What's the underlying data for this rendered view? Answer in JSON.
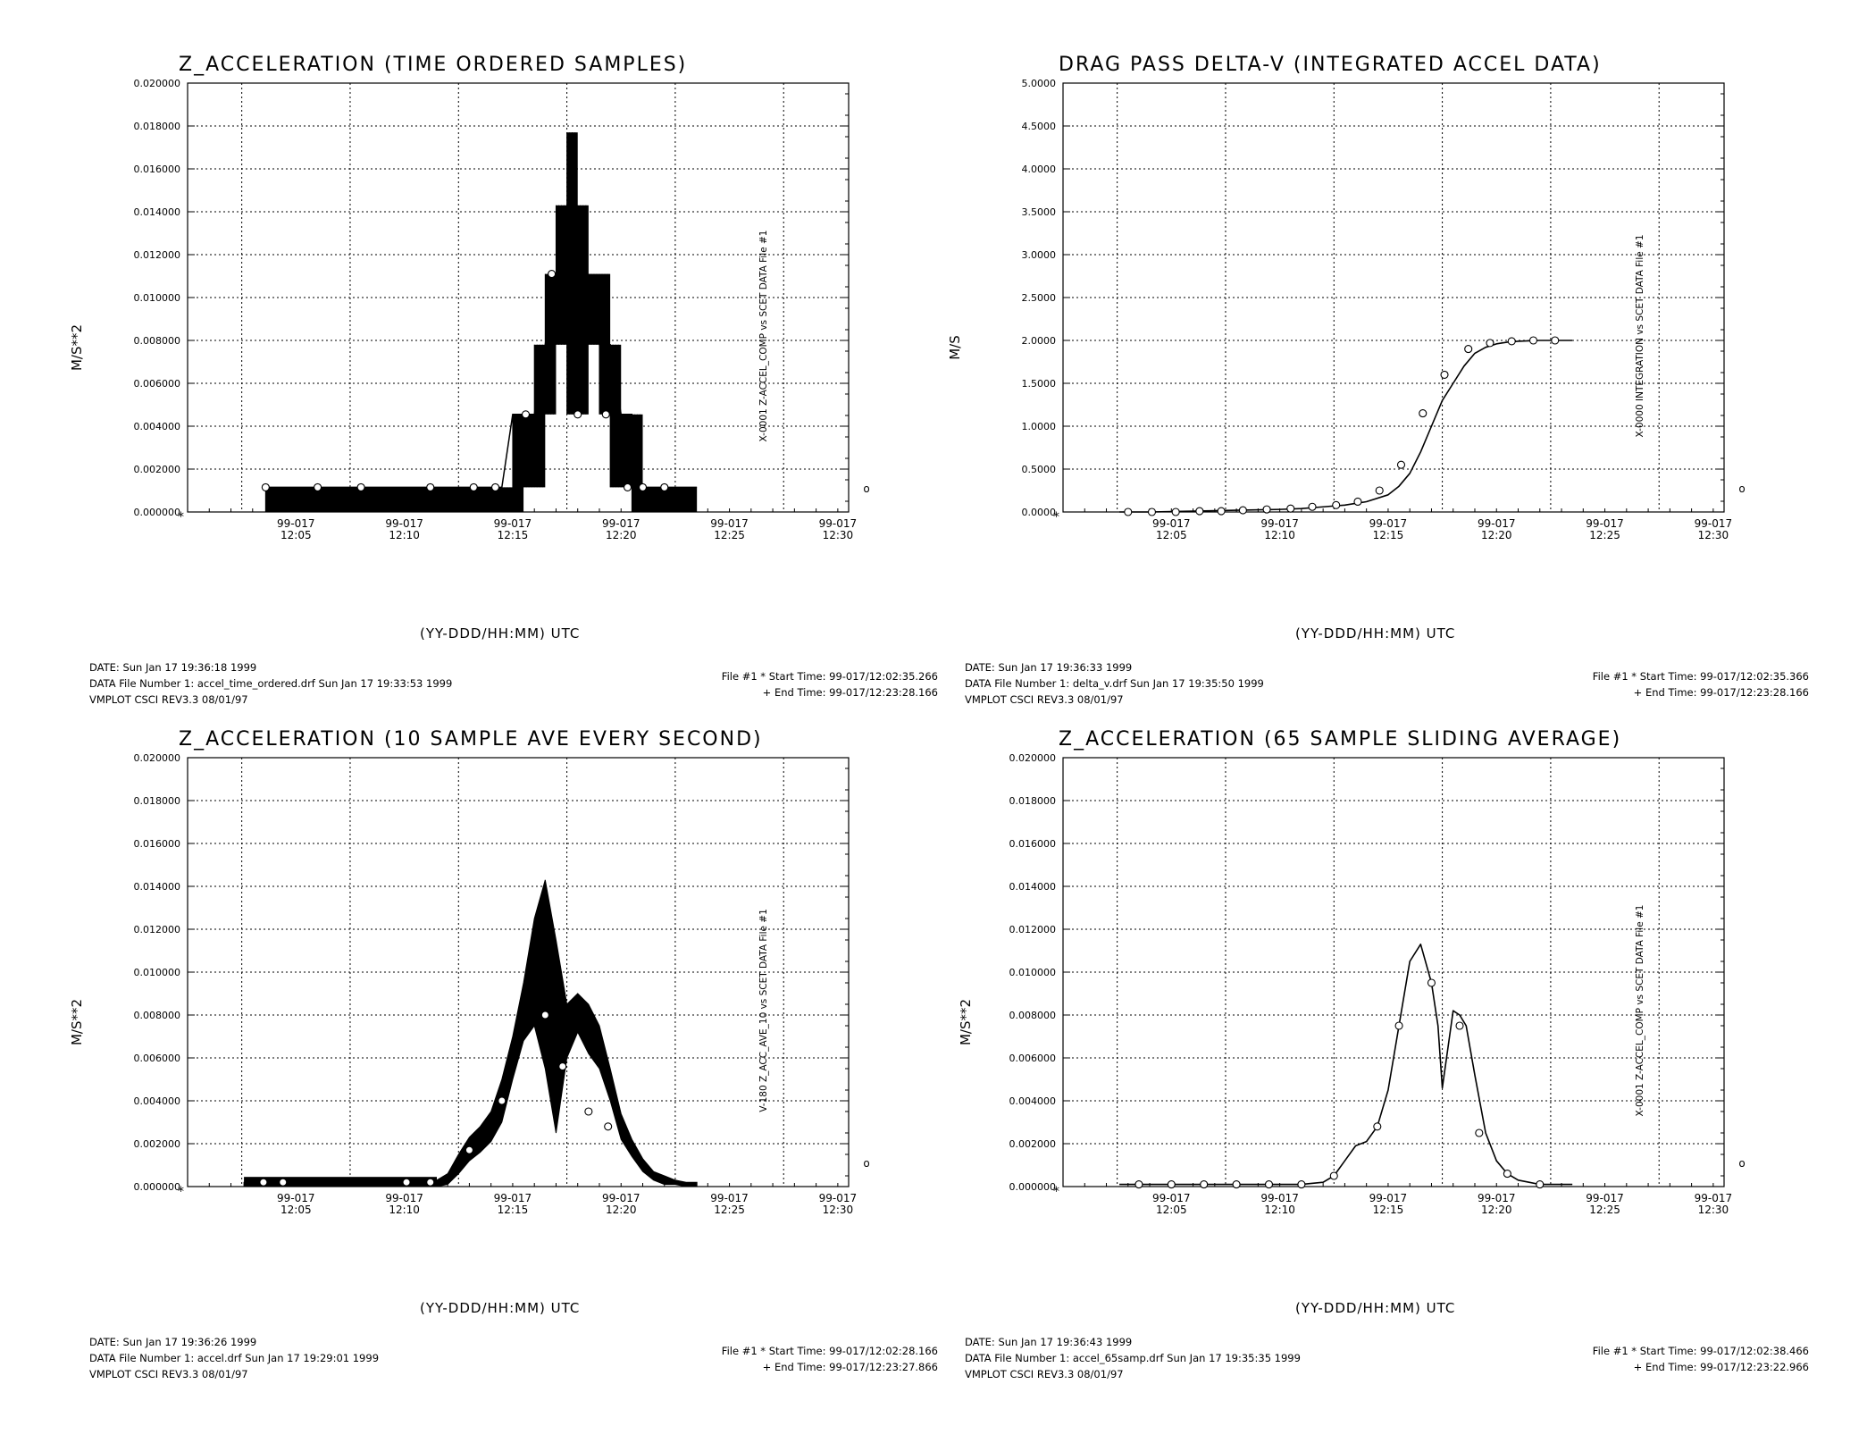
{
  "x_tick_labels": [
    "99-017\n12:05",
    "99-017\n12:10",
    "99-017\n12:15",
    "99-017\n12:20",
    "99-017\n12:25",
    "99-017\n12:30"
  ],
  "chart_data": [
    {
      "type": "line",
      "title": "Z_ACCELERATION (TIME ORDERED SAMPLES)",
      "xlabel": "(YY-DDD/HH:MM) UTC",
      "ylabel": "M/S**2",
      "right_label": "X-0001 Z-ACCEL_COMP vs SCET  DATA File #1",
      "right_marker": "o",
      "y_ticks": [
        "0.000000",
        "0.002000",
        "0.004000",
        "0.006000",
        "0.008000",
        "0.010000",
        "0.012000",
        "0.014000",
        "0.016000",
        "0.018000",
        "0.020000"
      ],
      "ylim": [
        0,
        0.02
      ],
      "xlim_minutes": [
        0,
        30.5
      ],
      "grid": true,
      "style": "quantized",
      "series": [
        {
          "x_minutes": [
            3.6,
            6.0,
            8.0,
            10.0,
            12.0,
            13.0,
            14.0,
            14.5,
            15.0,
            15.5,
            16.0,
            16.5,
            17.0,
            17.5,
            18.0,
            18.5,
            19.0,
            19.5,
            20.0,
            20.5,
            21.0,
            21.5,
            22.0,
            22.5,
            23.0,
            23.5
          ],
          "values": [
            0.00115,
            0.00115,
            0.00115,
            0.00115,
            0.00115,
            0.00115,
            0.00115,
            0.00115,
            0.00455,
            0.00455,
            0.00455,
            0.0078,
            0.0111,
            0.0143,
            0.0078,
            0.0111,
            0.0078,
            0.0078,
            0.00455,
            0.00455,
            0.00115,
            0.00115,
            0.00115,
            0.00115,
            0.00115,
            0.00115
          ],
          "upper": [
            0.00115,
            0.00115,
            0.00115,
            0.00115,
            0.00115,
            0.00115,
            0.00115,
            0.00115,
            0.00455,
            0.00455,
            0.0078,
            0.0111,
            0.0143,
            0.0177,
            0.0143,
            0.0111,
            0.0111,
            0.0078,
            0.00455,
            0.00455,
            0.00115,
            0.00115,
            0.00115,
            0.00115,
            0.00115,
            0.00115
          ],
          "lower": [
            0,
            0,
            0,
            0,
            0,
            0,
            0,
            0,
            0,
            0.00115,
            0.00115,
            0.00455,
            0.0078,
            0.00455,
            0.00455,
            0.0078,
            0.00455,
            0.00115,
            0.00115,
            0,
            0,
            0,
            0,
            0,
            0,
            0
          ]
        }
      ],
      "markers_x_minutes": [
        3.6,
        6.0,
        8.0,
        11.2,
        13.2,
        14.2,
        15.6,
        16.8,
        18.0,
        19.3,
        20.3,
        21.0,
        22.0
      ],
      "markers_y": [
        0.00115,
        0.00115,
        0.00115,
        0.00115,
        0.00115,
        0.00115,
        0.00455,
        0.0111,
        0.00455,
        0.00455,
        0.00115,
        0.00115,
        0.00115
      ],
      "footer_left": [
        "DATE: Sun Jan 17 19:36:18 1999",
        "DATA File Number 1: accel_time_ordered.drf  Sun Jan 17 19:33:53 1999",
        "VMPLOT CSCI REV3.3 08/01/97"
      ],
      "footer_right": [
        "File #1 * Start Time: 99-017/12:02:35.266",
        "+  End Time: 99-017/12:23:28.166"
      ]
    },
    {
      "type": "line",
      "title": "DRAG PASS DELTA-V (INTEGRATED ACCEL DATA)",
      "xlabel": "(YY-DDD/HH:MM) UTC",
      "ylabel": "M/S",
      "right_label": "X-0000 INTEGRATION vs SCET  DATA File #1",
      "right_marker": "o",
      "y_ticks": [
        "0.0000",
        "0.5000",
        "1.0000",
        "1.5000",
        "2.0000",
        "2.5000",
        "3.0000",
        "3.5000",
        "4.0000",
        "4.5000",
        "5.0000"
      ],
      "ylim": [
        0,
        5
      ],
      "xlim_minutes": [
        0,
        30.5
      ],
      "grid": true,
      "style": "line",
      "series": [
        {
          "x_minutes": [
            2.6,
            4.0,
            6.0,
            8.0,
            10.0,
            11.0,
            12.0,
            13.0,
            14.0,
            15.0,
            15.5,
            16.0,
            16.5,
            17.0,
            17.5,
            18.0,
            18.5,
            19.0,
            19.5,
            20.0,
            20.5,
            21.0,
            21.5,
            22.0,
            22.5,
            23.0,
            23.5
          ],
          "values": [
            0.0,
            0.0,
            0.01,
            0.02,
            0.03,
            0.04,
            0.06,
            0.08,
            0.12,
            0.2,
            0.3,
            0.45,
            0.7,
            1.0,
            1.3,
            1.5,
            1.7,
            1.85,
            1.92,
            1.96,
            1.98,
            1.99,
            1.995,
            2.0,
            2.0,
            2.0,
            2.0
          ]
        }
      ],
      "markers_x_minutes": [
        3.0,
        4.1,
        5.2,
        6.3,
        7.3,
        8.3,
        9.4,
        10.5,
        11.5,
        12.6,
        13.6,
        14.6,
        15.6,
        16.6,
        17.6,
        18.7,
        19.7,
        20.7,
        21.7,
        22.7
      ],
      "markers_y": [
        0.0,
        0.0,
        0.0,
        0.01,
        0.01,
        0.02,
        0.03,
        0.04,
        0.06,
        0.08,
        0.12,
        0.25,
        0.55,
        1.15,
        1.6,
        1.9,
        1.97,
        1.99,
        2.0,
        2.0
      ],
      "footer_left": [
        "DATE: Sun Jan 17 19:36:33 1999",
        "DATA File Number 1: delta_v.drf  Sun Jan 17 19:35:50 1999",
        "VMPLOT CSCI REV3.3 08/01/97"
      ],
      "footer_right": [
        "File #1 * Start Time: 99-017/12:02:35.366",
        "+  End Time: 99-017/12:23:28.166"
      ]
    },
    {
      "type": "line",
      "title": "Z_ACCELERATION (10 SAMPLE AVE EVERY SECOND)",
      "xlabel": "(YY-DDD/HH:MM) UTC",
      "ylabel": "M/S**2",
      "right_label": "V-180 Z_ACC_AVE_10 vs SCET  DATA File #1",
      "right_marker": "o",
      "y_ticks": [
        "0.000000",
        "0.002000",
        "0.004000",
        "0.006000",
        "0.008000",
        "0.010000",
        "0.012000",
        "0.014000",
        "0.016000",
        "0.018000",
        "0.020000"
      ],
      "ylim": [
        0,
        0.02
      ],
      "xlim_minutes": [
        0,
        30.5
      ],
      "grid": true,
      "style": "band",
      "series": [
        {
          "x_minutes": [
            2.6,
            5.0,
            7.0,
            9.0,
            11.0,
            11.5,
            12.0,
            12.5,
            13.0,
            13.5,
            14.0,
            14.5,
            15.0,
            15.5,
            16.0,
            16.5,
            17.0,
            17.5,
            18.0,
            18.5,
            19.0,
            19.5,
            20.0,
            20.5,
            21.0,
            21.5,
            22.0,
            22.5,
            23.0,
            23.5
          ],
          "values": [
            0.0001,
            0.0001,
            0.0001,
            0.0001,
            0.0001,
            0.0001,
            0.0003,
            0.001,
            0.0017,
            0.0022,
            0.0028,
            0.004,
            0.006,
            0.008,
            0.0105,
            0.012,
            0.0085,
            0.0072,
            0.0082,
            0.0075,
            0.0065,
            0.0048,
            0.0028,
            0.0018,
            0.001,
            0.0005,
            0.0003,
            0.0002,
            0.0001,
            0.0001
          ],
          "upper": [
            0.0002,
            0.0002,
            0.0002,
            0.0002,
            0.0002,
            0.0003,
            0.0006,
            0.0015,
            0.0023,
            0.0028,
            0.0035,
            0.005,
            0.007,
            0.0095,
            0.0125,
            0.0143,
            0.0115,
            0.0085,
            0.009,
            0.0085,
            0.0075,
            0.0055,
            0.0034,
            0.0022,
            0.0013,
            0.0007,
            0.0005,
            0.0003,
            0.0002,
            0.0002
          ],
          "lower": [
            0.0,
            0.0,
            0.0,
            0.0,
            0.0,
            0.0,
            0.0001,
            0.0006,
            0.0012,
            0.0016,
            0.0021,
            0.003,
            0.005,
            0.0068,
            0.0075,
            0.0055,
            0.0025,
            0.006,
            0.0072,
            0.0062,
            0.0055,
            0.004,
            0.0022,
            0.0014,
            0.0007,
            0.0003,
            0.0001,
            0.0001,
            0.0,
            0.0
          ]
        }
      ],
      "markers_x_minutes": [
        3.5,
        4.4,
        10.1,
        11.2,
        13.0,
        14.5,
        16.5,
        17.3,
        18.5,
        19.4
      ],
      "markers_y": [
        0.0002,
        0.0002,
        0.0002,
        0.0002,
        0.0017,
        0.004,
        0.008,
        0.0056,
        0.0035,
        0.0028
      ],
      "footer_left": [
        "DATE: Sun Jan 17 19:36:26 1999",
        "DATA File Number 1: accel.drf  Sun Jan 17 19:29:01 1999",
        "VMPLOT CSCI REV3.3 08/01/97"
      ],
      "footer_right": [
        "File #1 * Start Time: 99-017/12:02:28.166",
        "+  End Time: 99-017/12:23:27.866"
      ]
    },
    {
      "type": "line",
      "title": "Z_ACCELERATION (65 SAMPLE SLIDING AVERAGE)",
      "xlabel": "(YY-DDD/HH:MM) UTC",
      "ylabel": "M/S**2",
      "right_label": "X-0001 Z-ACCEL_COMP vs SCET  DATA File #1",
      "right_marker": "o",
      "y_ticks": [
        "0.000000",
        "0.002000",
        "0.004000",
        "0.006000",
        "0.008000",
        "0.010000",
        "0.012000",
        "0.014000",
        "0.016000",
        "0.018000",
        "0.020000"
      ],
      "ylim": [
        0,
        0.02
      ],
      "xlim_minutes": [
        0,
        30.5
      ],
      "grid": true,
      "style": "line",
      "series": [
        {
          "x_minutes": [
            2.6,
            5.0,
            8.0,
            11.0,
            12.0,
            12.5,
            13.0,
            13.5,
            14.0,
            14.5,
            15.0,
            15.5,
            16.0,
            16.5,
            17.0,
            17.3,
            17.5,
            18.0,
            18.3,
            18.6,
            19.0,
            19.5,
            20.0,
            20.5,
            21.0,
            21.5,
            22.0,
            22.5,
            23.0,
            23.5
          ],
          "values": [
            0.0001,
            0.0001,
            0.0001,
            0.0001,
            0.0002,
            0.0005,
            0.0012,
            0.0019,
            0.0021,
            0.0028,
            0.0045,
            0.0075,
            0.0105,
            0.0113,
            0.0095,
            0.0075,
            0.0046,
            0.0082,
            0.008,
            0.0075,
            0.0052,
            0.0025,
            0.0012,
            0.0006,
            0.0003,
            0.0002,
            0.0001,
            0.0001,
            0.0001,
            0.0001
          ]
        }
      ],
      "markers_x_minutes": [
        3.5,
        5.0,
        6.5,
        8.0,
        9.5,
        11.0,
        12.5,
        14.5,
        15.5,
        17.0,
        18.3,
        19.2,
        20.5,
        22.0
      ],
      "markers_y": [
        0.0001,
        0.0001,
        0.0001,
        0.0001,
        0.0001,
        0.0001,
        0.0005,
        0.0028,
        0.0075,
        0.0095,
        0.0075,
        0.0025,
        0.0006,
        0.0001
      ],
      "footer_left": [
        "DATE: Sun Jan 17 19:36:43 1999",
        "DATA File Number 1: accel_65samp.drf  Sun Jan 17 19:35:35 1999",
        "VMPLOT CSCI REV3.3 08/01/97"
      ],
      "footer_right": [
        "File #1 * Start Time: 99-017/12:02:38.466",
        "+  End Time: 99-017/12:23:22.966"
      ]
    }
  ]
}
